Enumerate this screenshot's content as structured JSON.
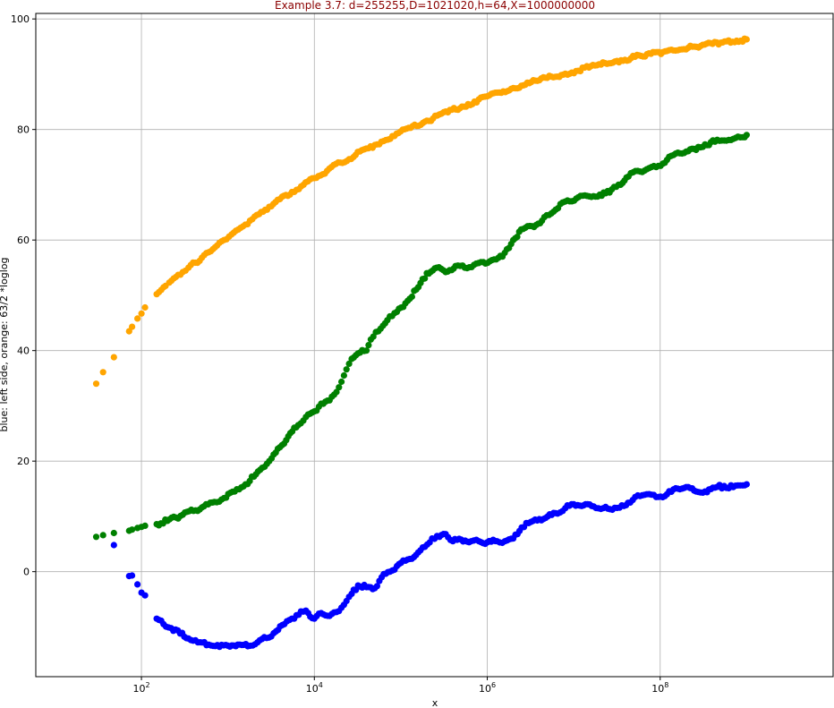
{
  "chart_data": {
    "type": "scatter",
    "title": "Example 3.7: d=255255,D=1021020,h=64,X=1000000000",
    "xlabel": "x",
    "ylabel": "blue: left side, orange: 63/2 *loglog",
    "x_scale": "log",
    "xlim": [
      6,
      10000000000
    ],
    "ylim": [
      -19,
      101
    ],
    "grid": true,
    "xticks": [
      {
        "value": 100,
        "base": "10",
        "exp": "2"
      },
      {
        "value": 10000,
        "base": "10",
        "exp": "4"
      },
      {
        "value": 1000000,
        "base": "10",
        "exp": "6"
      },
      {
        "value": 100000000,
        "base": "10",
        "exp": "8"
      }
    ],
    "yticks": [
      0,
      20,
      40,
      60,
      80,
      100
    ],
    "series": [
      {
        "color": "#ffa500",
        "points": [
          [
            30,
            34
          ],
          [
            36,
            36.1
          ],
          [
            48,
            38.8
          ],
          [
            72,
            43.5
          ],
          [
            78,
            44.3
          ],
          [
            90,
            45.8
          ],
          [
            100,
            46.7
          ],
          [
            110,
            47.8
          ],
          [
            150,
            50.2
          ],
          [
            170,
            51
          ],
          [
            190,
            51.7
          ],
          [
            210,
            52.3
          ],
          [
            250,
            53.3
          ],
          [
            300,
            54.2
          ],
          [
            350,
            55
          ],
          [
            420,
            55.9
          ],
          [
            500,
            56.8
          ],
          [
            600,
            57.8
          ],
          [
            750,
            59
          ],
          [
            900,
            60
          ],
          [
            1100,
            61
          ],
          [
            1400,
            62.2
          ],
          [
            1800,
            63.5
          ],
          [
            2300,
            64.7
          ],
          [
            3000,
            66
          ],
          [
            4000,
            67.4
          ],
          [
            5500,
            68.7
          ],
          [
            7500,
            70
          ],
          [
            10000,
            71.2
          ],
          [
            14000,
            72.5
          ],
          [
            20000,
            74
          ],
          [
            30000,
            75.4
          ],
          [
            50000,
            77.2
          ],
          [
            80000,
            78.8
          ],
          [
            130000,
            80.3
          ],
          [
            200000,
            81.6
          ],
          [
            350000,
            83.1
          ],
          [
            600000,
            84.6
          ],
          [
            1000000,
            86
          ],
          [
            2000000,
            87.5
          ],
          [
            4000000,
            88.9
          ],
          [
            8000000,
            90.1
          ],
          [
            15000000,
            91.2
          ],
          [
            30000000,
            92.3
          ],
          [
            60000000,
            93.3
          ],
          [
            120000000,
            94.2
          ],
          [
            250000000,
            95
          ],
          [
            500000000,
            95.7
          ],
          [
            1000000000,
            96.3
          ]
        ]
      },
      {
        "color": "#008000",
        "points": [
          [
            30,
            6.3
          ],
          [
            36,
            6.6
          ],
          [
            48,
            7
          ],
          [
            72,
            7.4
          ],
          [
            78,
            7.6
          ],
          [
            90,
            7.9
          ],
          [
            100,
            8.1
          ],
          [
            110,
            8.3
          ],
          [
            150,
            8.6
          ],
          [
            200,
            9.2
          ],
          [
            250,
            9.8
          ],
          [
            300,
            10.3
          ],
          [
            400,
            11
          ],
          [
            500,
            11.6
          ],
          [
            700,
            12.6
          ],
          [
            900,
            13.3
          ],
          [
            1200,
            14.5
          ],
          [
            1600,
            15.8
          ],
          [
            2000,
            17.2
          ],
          [
            2500,
            18.8
          ],
          [
            3200,
            20.5
          ],
          [
            4000,
            22.5
          ],
          [
            5000,
            24.5
          ],
          [
            6500,
            26.5
          ],
          [
            8000,
            28
          ],
          [
            10000,
            29
          ],
          [
            12000,
            30.4
          ],
          [
            15000,
            31
          ],
          [
            18000,
            32.5
          ],
          [
            22000,
            35.5
          ],
          [
            27000,
            38.5
          ],
          [
            32000,
            39.5
          ],
          [
            40000,
            40
          ],
          [
            45000,
            42
          ],
          [
            55000,
            43.5
          ],
          [
            70000,
            45.5
          ],
          [
            90000,
            47
          ],
          [
            120000,
            49
          ],
          [
            160000,
            51.5
          ],
          [
            200000,
            54
          ],
          [
            260000,
            55
          ],
          [
            330000,
            54.2
          ],
          [
            430000,
            55.3
          ],
          [
            550000,
            55
          ],
          [
            700000,
            55.5
          ],
          [
            900000,
            56
          ],
          [
            1200000,
            56.5
          ],
          [
            1500000,
            57
          ],
          [
            2000000,
            60
          ],
          [
            2600000,
            62
          ],
          [
            3300000,
            62.5
          ],
          [
            4300000,
            63.5
          ],
          [
            5500000,
            64.8
          ],
          [
            7000000,
            66.5
          ],
          [
            9000000,
            67
          ],
          [
            12000000,
            68
          ],
          [
            16000000,
            67.8
          ],
          [
            20000000,
            68.2
          ],
          [
            26000000,
            68.6
          ],
          [
            33000000,
            70
          ],
          [
            43000000,
            71.5
          ],
          [
            55000000,
            72.5
          ],
          [
            70000000,
            72.8
          ],
          [
            90000000,
            73.2
          ],
          [
            120000000,
            74.5
          ],
          [
            160000000,
            75.8
          ],
          [
            200000000,
            76
          ],
          [
            260000000,
            76.3
          ],
          [
            330000000,
            77.3
          ],
          [
            430000000,
            77.8
          ],
          [
            550000000,
            78
          ],
          [
            700000000,
            78.3
          ],
          [
            900000000,
            78.6
          ],
          [
            1000000000,
            79
          ]
        ]
      },
      {
        "color": "#0000ff",
        "points": [
          [
            48,
            4.8
          ],
          [
            72,
            -0.8
          ],
          [
            78,
            -0.7
          ],
          [
            90,
            -2.3
          ],
          [
            100,
            -3.8
          ],
          [
            110,
            -4.3
          ],
          [
            150,
            -8.5
          ],
          [
            180,
            -9.5
          ],
          [
            220,
            -10.2
          ],
          [
            280,
            -11.2
          ],
          [
            350,
            -12.1
          ],
          [
            450,
            -12.8
          ],
          [
            600,
            -13.2
          ],
          [
            800,
            -13.6
          ],
          [
            1000,
            -13.4
          ],
          [
            1300,
            -13.2
          ],
          [
            1700,
            -13.5
          ],
          [
            2200,
            -12.8
          ],
          [
            2800,
            -12
          ],
          [
            3600,
            -10.8
          ],
          [
            4500,
            -9.5
          ],
          [
            5500,
            -8.5
          ],
          [
            7000,
            -7.2
          ],
          [
            8500,
            -7.5
          ],
          [
            10000,
            -8.5
          ],
          [
            12000,
            -7.5
          ],
          [
            15000,
            -8
          ],
          [
            18000,
            -7.3
          ],
          [
            22000,
            -6
          ],
          [
            27000,
            -4
          ],
          [
            32000,
            -2.5
          ],
          [
            40000,
            -2.8
          ],
          [
            50000,
            -3
          ],
          [
            60000,
            -1
          ],
          [
            75000,
            0
          ],
          [
            90000,
            1
          ],
          [
            120000,
            2.2
          ],
          [
            150000,
            3
          ],
          [
            190000,
            4.5
          ],
          [
            230000,
            6
          ],
          [
            280000,
            6.3
          ],
          [
            330000,
            6.8
          ],
          [
            400000,
            5.5
          ],
          [
            500000,
            5.8
          ],
          [
            650000,
            5.5
          ],
          [
            800000,
            5.5
          ],
          [
            1000000,
            5.3
          ],
          [
            1300000,
            5.5
          ],
          [
            1600000,
            5.5
          ],
          [
            2000000,
            6
          ],
          [
            2500000,
            8
          ],
          [
            3200000,
            9
          ],
          [
            4000000,
            9.5
          ],
          [
            5000000,
            10
          ],
          [
            6500000,
            10.5
          ],
          [
            8000000,
            11.5
          ],
          [
            10000000,
            12.2
          ],
          [
            13000000,
            12
          ],
          [
            17000000,
            11.8
          ],
          [
            22000000,
            11.5
          ],
          [
            28000000,
            11.2
          ],
          [
            36000000,
            12
          ],
          [
            45000000,
            12.5
          ],
          [
            55000000,
            13.8
          ],
          [
            70000000,
            14
          ],
          [
            90000000,
            13.5
          ],
          [
            120000000,
            14
          ],
          [
            160000000,
            15
          ],
          [
            200000000,
            15.3
          ],
          [
            260000000,
            14.5
          ],
          [
            330000000,
            14.5
          ],
          [
            430000000,
            15.2
          ],
          [
            550000000,
            15.5
          ],
          [
            700000000,
            15.3
          ],
          [
            900000000,
            15.6
          ],
          [
            1000000000,
            15.8
          ]
        ]
      }
    ]
  }
}
